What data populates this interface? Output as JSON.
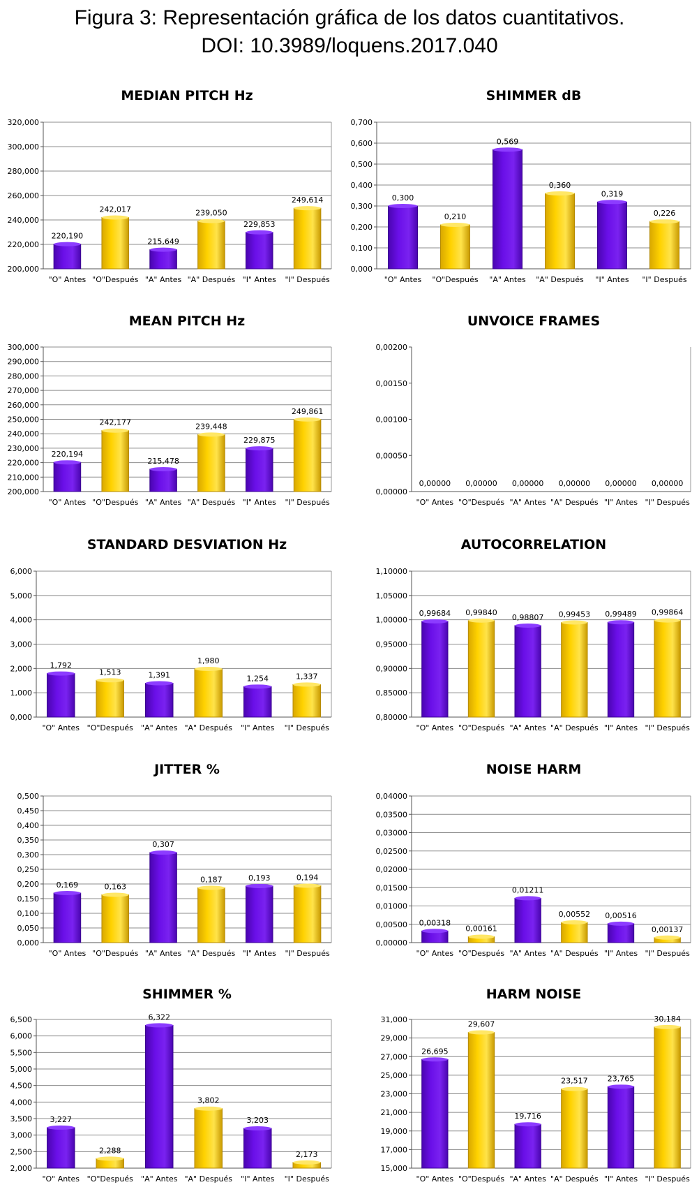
{
  "figure": {
    "title_line1": "Figura 3: Representación gráfica de los datos cuantitativos.",
    "title_line2": "DOI: 10.3989/loquens.2017.040"
  },
  "colors": {
    "purple": "#6a0fe8",
    "yellow": "#ffd200",
    "grid": "#8c8c8c"
  },
  "chart_data": [
    {
      "type": "bar",
      "title": "MEDIAN PITCH Hz",
      "categories": [
        "\"O\" Antes",
        "\"O\"Después",
        "\"A\" Antes",
        "\"A\" Después",
        "\"I\" Antes",
        "\"I\" Después"
      ],
      "values": [
        220.19,
        242.017,
        215.649,
        239.05,
        229.853,
        249.614
      ],
      "labels": [
        "220,190",
        "242,017",
        "215,649",
        "239,050",
        "229,853",
        "249,614"
      ],
      "ylim": [
        200,
        320
      ],
      "yticks": [
        "200,000",
        "220,000",
        "240,000",
        "260,000",
        "280,000",
        "300,000",
        "320,000"
      ],
      "grid": true
    },
    {
      "type": "bar",
      "title": "SHIMMER dB",
      "categories": [
        "\"O\" Antes",
        "\"O\"Después",
        "\"A\" Antes",
        "\"A\" Después",
        "\"I\" Antes",
        "\"I\" Después"
      ],
      "values": [
        0.3,
        0.21,
        0.569,
        0.36,
        0.319,
        0.226
      ],
      "labels": [
        "0,300",
        "0,210",
        "0,569",
        "0,360",
        "0,319",
        "0,226"
      ],
      "ylim": [
        0,
        0.7
      ],
      "yticks": [
        "0,000",
        "0,100",
        "0,200",
        "0,300",
        "0,400",
        "0,500",
        "0,600",
        "0,700"
      ],
      "grid": true
    },
    {
      "type": "bar",
      "title": "MEAN PITCH Hz",
      "categories": [
        "\"O\" Antes",
        "\"O\"Después",
        "\"A\" Antes",
        "\"A\" Después",
        "\"I\" Antes",
        "\"I\" Después"
      ],
      "values": [
        220.194,
        242.177,
        215.478,
        239.448,
        229.875,
        249.861
      ],
      "labels": [
        "220,194",
        "242,177",
        "215,478",
        "239,448",
        "229,875",
        "249,861"
      ],
      "ylim": [
        200,
        300
      ],
      "yticks": [
        "200,000",
        "210,000",
        "220,000",
        "230,000",
        "240,000",
        "250,000",
        "260,000",
        "270,000",
        "280,000",
        "290,000",
        "300,000"
      ],
      "grid": true
    },
    {
      "type": "bar",
      "title": "UNVOICE FRAMES",
      "categories": [
        "\"O\" Antes",
        "\"O\"Después",
        "\"A\" Antes",
        "\"A\" Después",
        "\"I\" Antes",
        "\"I\" Después"
      ],
      "values": [
        0,
        0,
        0,
        0,
        0,
        0
      ],
      "labels": [
        "0,00000",
        "0,00000",
        "0,00000",
        "0,00000",
        "0,00000",
        "0,00000"
      ],
      "ylim": [
        0,
        0.002
      ],
      "yticks": [
        "0,00000",
        "0,00050",
        "0,00100",
        "0,00150",
        "0,00200"
      ],
      "grid": false
    },
    {
      "type": "bar",
      "title": "STANDARD DESVIATION Hz",
      "categories": [
        "\"O\" Antes",
        "\"O\"Después",
        "\"A\" Antes",
        "\"A\" Después",
        "\"I\" Antes",
        "\"I\" Después"
      ],
      "values": [
        1.792,
        1.513,
        1.391,
        1.98,
        1.254,
        1.337
      ],
      "labels": [
        "1,792",
        "1,513",
        "1,391",
        "1,980",
        "1,254",
        "1,337"
      ],
      "ylim": [
        0,
        6
      ],
      "yticks": [
        "0,000",
        "1,000",
        "2,000",
        "3,000",
        "4,000",
        "5,000",
        "6,000"
      ],
      "grid": true
    },
    {
      "type": "bar",
      "title": "AUTOCORRELATION",
      "categories": [
        "\"O\" Antes",
        "\"O\"Después",
        "\"A\" Antes",
        "\"A\" Después",
        "\"I\" Antes",
        "\"I\" Después"
      ],
      "values": [
        0.99684,
        0.9984,
        0.98807,
        0.99453,
        0.99489,
        0.99864
      ],
      "labels": [
        "0,99684",
        "0,99840",
        "0,98807",
        "0,99453",
        "0,99489",
        "0,99864"
      ],
      "ylim": [
        0.8,
        1.1
      ],
      "yticks": [
        "0,80000",
        "0,85000",
        "0,90000",
        "0,95000",
        "1,00000",
        "1,05000",
        "1,10000"
      ],
      "grid": true
    },
    {
      "type": "bar",
      "title": "JITTER %",
      "categories": [
        "\"O\" Antes",
        "\"O\"Después",
        "\"A\" Antes",
        "\"A\" Después",
        "\"I\" Antes",
        "\"I\" Después"
      ],
      "values": [
        0.169,
        0.163,
        0.307,
        0.187,
        0.193,
        0.194
      ],
      "labels": [
        "0,169",
        "0,163",
        "0,307",
        "0,187",
        "0,193",
        "0,194"
      ],
      "ylim": [
        0,
        0.5
      ],
      "yticks": [
        "0,000",
        "0,050",
        "0,100",
        "0,150",
        "0,200",
        "0,250",
        "0,300",
        "0,350",
        "0,400",
        "0,450",
        "0,500"
      ],
      "grid": true
    },
    {
      "type": "bar",
      "title": "NOISE HARM",
      "categories": [
        "\"O\" Antes",
        "\"O\"Después",
        "\"A\" Antes",
        "\"A\" Después",
        "\"I\" Antes",
        "\"I\" Después"
      ],
      "values": [
        0.00318,
        0.00161,
        0.01211,
        0.00552,
        0.00516,
        0.00137
      ],
      "labels": [
        "0,00318",
        "0,00161",
        "0,01211",
        "0,00552",
        "0,00516",
        "0,00137"
      ],
      "ylim": [
        0,
        0.04
      ],
      "yticks": [
        "0,00000",
        "0,00500",
        "0,01000",
        "0,01500",
        "0,02000",
        "0,02500",
        "0,03000",
        "0,03500",
        "0,04000"
      ],
      "grid": true
    },
    {
      "type": "bar",
      "title": "SHIMMER %",
      "categories": [
        "\"O\" Antes",
        "\"O\"Después",
        "\"A\" Antes",
        "\"A\" Después",
        "\"I\" Antes",
        "\"I\" Después"
      ],
      "values": [
        3.227,
        2.288,
        6.322,
        3.802,
        3.203,
        2.173
      ],
      "labels": [
        "3,227",
        "2,288",
        "6,322",
        "3,802",
        "3,203",
        "2,173"
      ],
      "ylim": [
        2,
        6.5
      ],
      "yticks": [
        "2,000",
        "2,500",
        "3,000",
        "3,500",
        "4,000",
        "4,500",
        "5,000",
        "5,500",
        "6,000",
        "6,500"
      ],
      "grid": true
    },
    {
      "type": "bar",
      "title": "HARM NOISE",
      "categories": [
        "\"O\" Antes",
        "\"O\"Después",
        "\"A\" Antes",
        "\"A\" Después",
        "\"I\" Antes",
        "\"I\" Después"
      ],
      "values": [
        26.695,
        29.607,
        19.716,
        23.517,
        23.765,
        30.184
      ],
      "labels": [
        "26,695",
        "29,607",
        "19,716",
        "23,517",
        "23,765",
        "30,184"
      ],
      "ylim": [
        15,
        31
      ],
      "yticks": [
        "15,000",
        "17,000",
        "19,000",
        "21,000",
        "23,000",
        "25,000",
        "27,000",
        "29,000",
        "31,000"
      ],
      "grid": true
    }
  ]
}
